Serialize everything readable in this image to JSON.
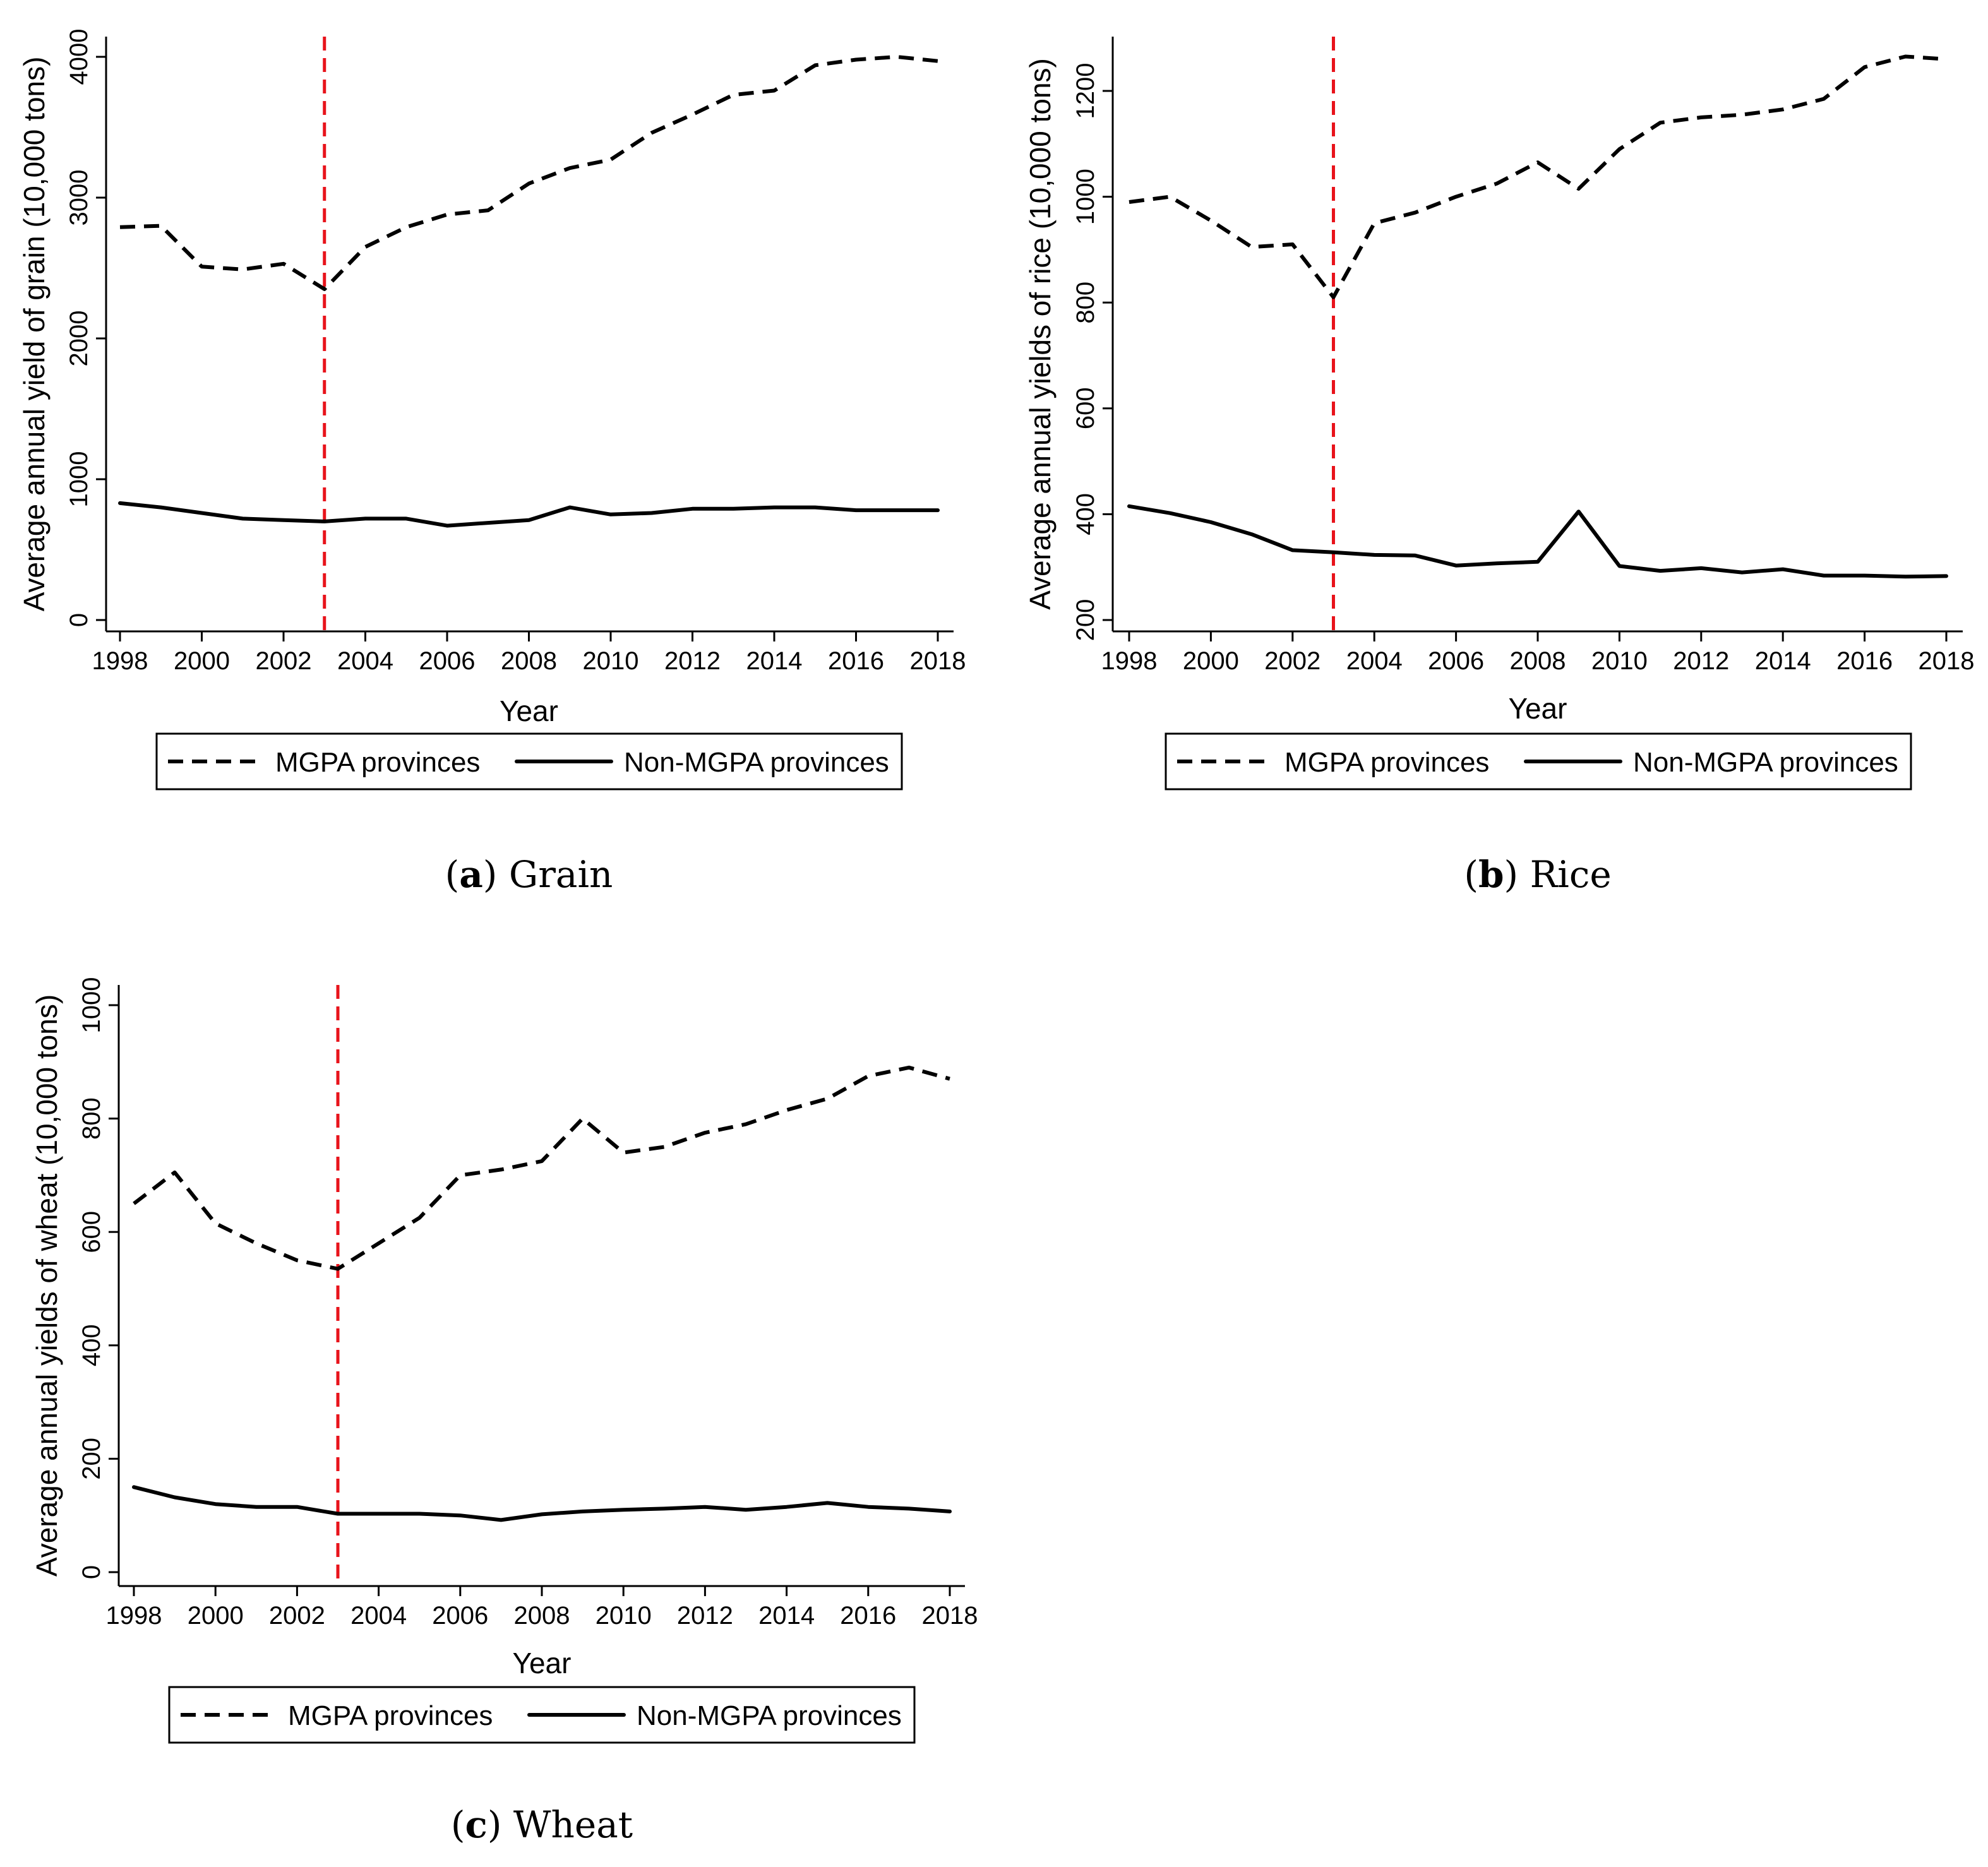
{
  "colors": {
    "event_line": "#e8131b",
    "series": "#000000"
  },
  "legend": {
    "mgpa": "MGPA provinces",
    "non_mgpa": "Non-MGPA provinces"
  },
  "chart_data": [
    {
      "id": "grain",
      "type": "line",
      "caption_letter": "a",
      "caption_text": "Grain",
      "xlabel": "Year",
      "ylabel": "Average annual yield of grain (10,000 tons)",
      "xlim": [
        1998,
        2018
      ],
      "ylim": [
        0,
        4000
      ],
      "xticks": [
        1998,
        2000,
        2002,
        2004,
        2006,
        2008,
        2010,
        2012,
        2014,
        2016,
        2018
      ],
      "yticks": [
        0,
        1000,
        2000,
        3000,
        4000
      ],
      "event_x": 2003,
      "x": [
        1998,
        1999,
        2000,
        2001,
        2002,
        2003,
        2004,
        2005,
        2006,
        2007,
        2008,
        2009,
        2010,
        2011,
        2012,
        2013,
        2014,
        2015,
        2016,
        2017,
        2018
      ],
      "series": [
        {
          "name": "MGPA provinces",
          "style": "dashed",
          "values": [
            2790,
            2800,
            2510,
            2490,
            2530,
            2350,
            2650,
            2790,
            2880,
            2910,
            3100,
            3210,
            3270,
            3460,
            3590,
            3730,
            3760,
            3940,
            3980,
            4000,
            3970
          ]
        },
        {
          "name": "Non-MGPA provinces",
          "style": "solid",
          "values": [
            830,
            800,
            760,
            720,
            710,
            700,
            720,
            720,
            670,
            690,
            710,
            800,
            750,
            760,
            790,
            790,
            800,
            800,
            780,
            780,
            780
          ]
        }
      ]
    },
    {
      "id": "rice",
      "type": "line",
      "caption_letter": "b",
      "caption_text": "Rice",
      "xlabel": "Year",
      "ylabel": "Average annual yields of rice (10,000 tons)",
      "xlim": [
        1998,
        2018
      ],
      "ylim": [
        200,
        1300
      ],
      "xticks": [
        1998,
        2000,
        2002,
        2004,
        2006,
        2008,
        2010,
        2012,
        2014,
        2016,
        2018
      ],
      "yticks": [
        200,
        400,
        600,
        800,
        1000,
        1200
      ],
      "event_x": 2003,
      "x": [
        1998,
        1999,
        2000,
        2001,
        2002,
        2003,
        2004,
        2005,
        2006,
        2007,
        2008,
        2009,
        2010,
        2011,
        2012,
        2013,
        2014,
        2015,
        2016,
        2017,
        2018
      ],
      "series": [
        {
          "name": "MGPA provinces",
          "style": "dashed",
          "values": [
            990,
            1000,
            955,
            905,
            910,
            810,
            950,
            970,
            1000,
            1025,
            1065,
            1015,
            1090,
            1140,
            1150,
            1155,
            1165,
            1185,
            1245,
            1265,
            1260
          ]
        },
        {
          "name": "Non-MGPA provinces",
          "style": "solid",
          "values": [
            415,
            402,
            385,
            362,
            332,
            328,
            323,
            322,
            303,
            307,
            310,
            405,
            302,
            293,
            298,
            290,
            296,
            284,
            284,
            282,
            283
          ]
        }
      ]
    },
    {
      "id": "wheat",
      "type": "line",
      "caption_letter": "c",
      "caption_text": "Wheat",
      "xlabel": "Year",
      "ylabel": "Average annual yields of wheat (10,000 tons)",
      "xlim": [
        1998,
        2018
      ],
      "ylim": [
        0,
        1000
      ],
      "xticks": [
        1998,
        2000,
        2002,
        2004,
        2006,
        2008,
        2010,
        2012,
        2014,
        2016,
        2018
      ],
      "yticks": [
        0,
        200,
        400,
        600,
        800,
        1000
      ],
      "event_x": 2003,
      "x": [
        1998,
        1999,
        2000,
        2001,
        2002,
        2003,
        2004,
        2005,
        2006,
        2007,
        2008,
        2009,
        2010,
        2011,
        2012,
        2013,
        2014,
        2015,
        2016,
        2017,
        2018
      ],
      "series": [
        {
          "name": "MGPA provinces",
          "style": "dashed",
          "values": [
            650,
            705,
            615,
            580,
            550,
            535,
            580,
            625,
            700,
            710,
            725,
            800,
            740,
            750,
            775,
            790,
            815,
            835,
            875,
            890,
            870
          ]
        },
        {
          "name": "Non-MGPA provinces",
          "style": "solid",
          "values": [
            150,
            132,
            120,
            115,
            115,
            103,
            103,
            103,
            100,
            92,
            102,
            107,
            110,
            112,
            115,
            110,
            115,
            122,
            115,
            112,
            107
          ]
        }
      ]
    }
  ]
}
